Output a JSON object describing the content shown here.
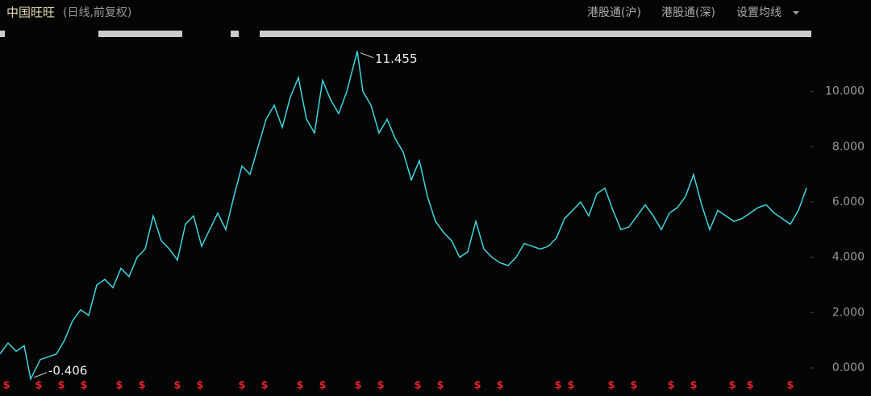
{
  "chart_data": {
    "type": "line",
    "title": "中国旺旺",
    "subtitle": "(日线,前复权)",
    "menu": [
      "港股通(沪)",
      "港股通(深)",
      "设置均线"
    ],
    "x": [
      0,
      10,
      20,
      30,
      38,
      50,
      60,
      70,
      80,
      90,
      100,
      110,
      120,
      130,
      140,
      150,
      160,
      170,
      180,
      190,
      200,
      210,
      220,
      230,
      240,
      250,
      260,
      270,
      280,
      290,
      300,
      310,
      320,
      330,
      340,
      350,
      360,
      370,
      380,
      390,
      400,
      410,
      420,
      430,
      443,
      450,
      460,
      470,
      480,
      490,
      500,
      510,
      520,
      530,
      540,
      550,
      560,
      570,
      580,
      590,
      600,
      610,
      620,
      630,
      640,
      650,
      660,
      670,
      680,
      690,
      700,
      710,
      720,
      730,
      740,
      750,
      760,
      770,
      780,
      790,
      800,
      810,
      820,
      830,
      840,
      850,
      860,
      870,
      880,
      890,
      900,
      910,
      920,
      930,
      940,
      950,
      960,
      970,
      980,
      990,
      1000
    ],
    "series": [
      {
        "color": "#3fd6e0",
        "values": [
          0.5,
          0.9,
          0.6,
          0.8,
          -0.406,
          0.3,
          0.4,
          0.5,
          1.0,
          1.7,
          2.1,
          1.9,
          3.0,
          3.2,
          2.9,
          3.6,
          3.3,
          4.0,
          4.3,
          5.5,
          4.6,
          4.3,
          3.9,
          5.2,
          5.5,
          4.4,
          5.0,
          5.6,
          5.0,
          6.2,
          7.3,
          7.0,
          8.0,
          9.0,
          9.5,
          8.7,
          9.8,
          10.5,
          9.0,
          8.5,
          10.4,
          9.7,
          9.2,
          10.0,
          11.455,
          10.0,
          9.5,
          8.5,
          9.0,
          8.3,
          7.8,
          6.8,
          7.5,
          6.2,
          5.3,
          4.9,
          4.6,
          4.0,
          4.2,
          5.3,
          4.3,
          4.0,
          3.8,
          3.7,
          4.0,
          4.5,
          4.4,
          4.3,
          4.4,
          4.7,
          5.4,
          5.7,
          6.0,
          5.5,
          6.3,
          6.5,
          5.7,
          5.0,
          5.1,
          5.5,
          5.9,
          5.5,
          5.0,
          5.6,
          5.8,
          6.2,
          7.0,
          5.9,
          5.0,
          5.7,
          5.5,
          5.3,
          5.4,
          5.6,
          5.8,
          5.9,
          5.6,
          5.4,
          5.2,
          5.7,
          6.5
        ]
      }
    ],
    "xlim": [
      0,
      1005
    ],
    "ylim": [
      -0.67,
      12.0
    ],
    "yticks": [
      {
        "value": 0,
        "label": "0.000"
      },
      {
        "value": 2,
        "label": "2.000"
      },
      {
        "value": 4,
        "label": "4.000"
      },
      {
        "value": 6,
        "label": "6.000"
      },
      {
        "value": 8,
        "label": "8.000"
      },
      {
        "value": 10,
        "label": "10.000"
      }
    ],
    "annotations": [
      {
        "x": 443,
        "y": 11.455
      },
      {
        "x": 38,
        "y": -0.406
      }
    ],
    "events": {
      "label": "$",
      "color": "#e0242b",
      "x": [
        8,
        48,
        76,
        104,
        148,
        176,
        220,
        248,
        300,
        328,
        372,
        400,
        444,
        472,
        518,
        546,
        592,
        620,
        692,
        708,
        758,
        786,
        832,
        860,
        908,
        930,
        980
      ]
    }
  }
}
